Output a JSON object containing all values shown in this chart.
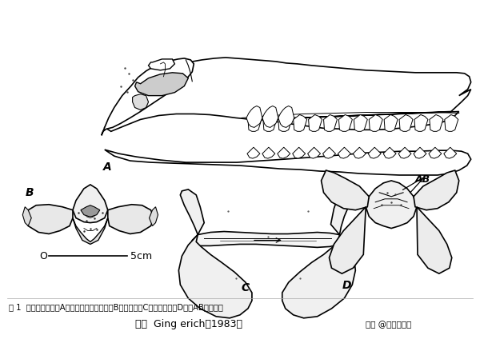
{
  "background_color": "#ffffff",
  "title_line1": "图 1  巴基鲸的头骨（A）及颅后骨的后面观（B）背面观（C）和腹面观（D），AB为耳骨泡",
  "title_line2": "（自  Ging erich，1983）",
  "watermark": "头条 @猎奇动物社",
  "scale_label": "5cm",
  "scale_zero": "O",
  "label_A": "A",
  "label_B": "B",
  "label_C": "C",
  "label_D": "D",
  "label_AB": "AB",
  "fig_width": 6.0,
  "fig_height": 4.35,
  "dpi": 100,
  "text_color": "#000000",
  "line_color": "#000000"
}
